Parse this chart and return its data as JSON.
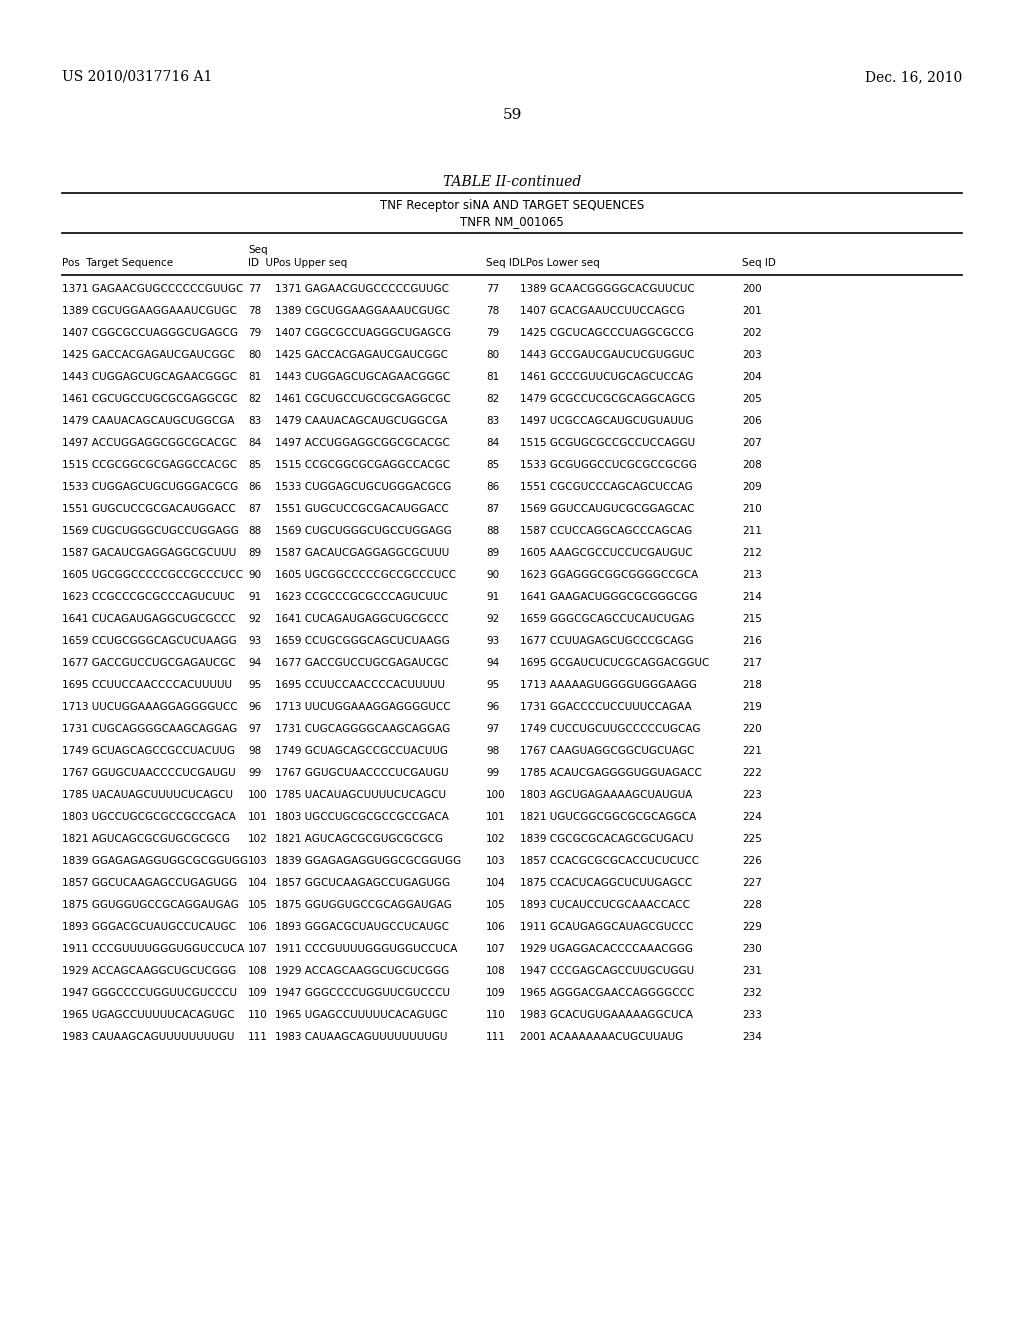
{
  "patent_left": "US 2010/0317716 A1",
  "patent_right": "Dec. 16, 2010",
  "page_number": "59",
  "table_title": "TABLE II-continued",
  "table_subtitle1": "TNF Receptor siNA AND TARGET SEQUENCES",
  "table_subtitle2": "TNFR NM_001065",
  "rows": [
    [
      "1371 GAGAACGUGCCCCCCGUUGC",
      "77",
      "1371 GAGAACGUGCCCCCGUUGC",
      "77",
      "1389 GCAACGGGGGCACGUUCUC",
      "200"
    ],
    [
      "1389 CGCUGGAAGGAAAUCGUGC",
      "78",
      "1389 CGCUGGAAGGAAAUCGUGC",
      "78",
      "1407 GCACGAAUCCUUCCAGCG",
      "201"
    ],
    [
      "1407 CGGCGCCUAGGGCUGAGCG",
      "79",
      "1407 CGGCGCCUAGGGCUGAGCG",
      "79",
      "1425 CGCUCAGCCCUAGGCGCCG",
      "202"
    ],
    [
      "1425 GACCACGAGAUCGAUCGGC",
      "80",
      "1425 GACCACGAGAUCGAUCGGC",
      "80",
      "1443 GCCGAUCGAUCUCGUGGUC",
      "203"
    ],
    [
      "1443 CUGGAGCUGCAGAACGGGC",
      "81",
      "1443 CUGGAGCUGCAGAACGGGC",
      "81",
      "1461 GCCCGUUCUGCAGCUCCAG",
      "204"
    ],
    [
      "1461 CGCUGCCUGCGCGAGGCGC",
      "82",
      "1461 CGCUGCCUGCGCGAGGCGC",
      "82",
      "1479 GCGCCUCGCGCAGGCAGCG",
      "205"
    ],
    [
      "1479 CAAUACAGCAUGCUGGCGA",
      "83",
      "1479 CAAUACAGCAUGCUGGCGA",
      "83",
      "1497 UCGCCAGCAUGCUGUAUUG",
      "206"
    ],
    [
      "1497 ACCUGGAGGCGGCGCACGC",
      "84",
      "1497 ACCUGGAGGCGGCGCACGC",
      "84",
      "1515 GCGUGCGCCGCCUCCAGGU",
      "207"
    ],
    [
      "1515 CCGCGGCGCGAGGCCACGC",
      "85",
      "1515 CCGCGGCGCGAGGCCACGC",
      "85",
      "1533 GCGUGGCCUCGCGCCGCGG",
      "208"
    ],
    [
      "1533 CUGGAGCUGCUGGGACGCG",
      "86",
      "1533 CUGGAGCUGCUGGGACGCG",
      "86",
      "1551 CGCGUCCCAGCAGCUCCAG",
      "209"
    ],
    [
      "1551 GUGCUCCGCGACAUGGACC",
      "87",
      "1551 GUGCUCCGCGACAUGGACC",
      "87",
      "1569 GGUCCAUGUCGCGGAGCAC",
      "210"
    ],
    [
      "1569 CUGCUGGGCUGCCUGGAGG",
      "88",
      "1569 CUGCUGGGCUGCCUGGAGG",
      "88",
      "1587 CCUCCAGGCAGCCCAGCAG",
      "211"
    ],
    [
      "1587 GACAUCGAGGAGGCGCUUU",
      "89",
      "1587 GACAUCGAGGAGGCGCUUU",
      "89",
      "1605 AAAGCGCCUCCUCGAUGUC",
      "212"
    ],
    [
      "1605 UGCGGCCCCCGCCGCCCUCC",
      "90",
      "1605 UGCGGCCCCCGCCGCCCUCC",
      "90",
      "1623 GGAGGGCGGCGGGGCCGCA",
      "213"
    ],
    [
      "1623 CCGCCCGCGCCCAGUCUUC",
      "91",
      "1623 CCGCCCGCGCCCAGUCUUC",
      "91",
      "1641 GAAGACUGGGCGCGGGCGG",
      "214"
    ],
    [
      "1641 CUCAGAUGAGGCUGCGCCC",
      "92",
      "1641 CUCAGAUGAGGCUGCGCCC",
      "92",
      "1659 GGGCGCAGCCUCAUCUGAG",
      "215"
    ],
    [
      "1659 CCUGCGGGCAGCUCUAAGG",
      "93",
      "1659 CCUGCGGGCAGCUCUAAGG",
      "93",
      "1677 CCUUAGAGCUGCCCGCAGG",
      "216"
    ],
    [
      "1677 GACCGUCCUGCGAGAUCGC",
      "94",
      "1677 GACCGUCCUGCGAGAUCGC",
      "94",
      "1695 GCGAUCUCUCGCAGGACGGUC",
      "217"
    ],
    [
      "1695 CCUUCCAACCCCACUUUUU",
      "95",
      "1695 CCUUCCAACCCCACUUUUU",
      "95",
      "1713 AAAAAGUGGGGUGGGAAGG",
      "218"
    ],
    [
      "1713 UUCUGGAAAGGAGGGGUCC",
      "96",
      "1713 UUCUGGAAAGGAGGGGUCC",
      "96",
      "1731 GGACCCCUCCUUUCCAGAA",
      "219"
    ],
    [
      "1731 CUGCAGGGGCAAGCAGGAG",
      "97",
      "1731 CUGCAGGGGCAAGCAGGAG",
      "97",
      "1749 CUCCUGCUUGCCCCCUGCAG",
      "220"
    ],
    [
      "1749 GCUAGCAGCCGCCUACUUG",
      "98",
      "1749 GCUAGCAGCCGCCUACUUG",
      "98",
      "1767 CAAGUAGGCGGCUGCUAGC",
      "221"
    ],
    [
      "1767 GGUGCUAACCCCUCGAUGU",
      "99",
      "1767 GGUGCUAACCCCUCGAUGU",
      "99",
      "1785 ACAUCGAGGGGUGGUAGACC",
      "222"
    ],
    [
      "1785 UACAUAGCUUUUCUCAGCU",
      "100",
      "1785 UACAUAGCUUUUCUCAGCU",
      "100",
      "1803 AGCUGAGAAAAGCUAUGUA",
      "223"
    ],
    [
      "1803 UGCCUGCGCGCCGCCGACA",
      "101",
      "1803 UGCCUGCGCGCCGCCGACA",
      "101",
      "1821 UGUCGGCGGCGCGCAGGCA",
      "224"
    ],
    [
      "1821 AGUCAGCGCGUGCGCGCG",
      "102",
      "1821 AGUCAGCGCGUGCGCGCG",
      "102",
      "1839 CGCGCGCACAGCGCUGACU",
      "225"
    ],
    [
      "1839 GGAGAGAGGUGGCGCGGUGG",
      "103",
      "1839 GGAGAGAGGUGGCGCGGUGG",
      "103",
      "1857 CCACGCGCGCACCUCUCUCC",
      "226"
    ],
    [
      "1857 GGCUCAAGAGCCUGAGUGG",
      "104",
      "1857 GGCUCAAGAGCCUGAGUGG",
      "104",
      "1875 CCACUCAGGCUCUUGAGCC",
      "227"
    ],
    [
      "1875 GGUGGUGCCGCAGGAUGAG",
      "105",
      "1875 GGUGGUGCCGCAGGAUGAG",
      "105",
      "1893 CUCAUCCUCGCAAACCACC",
      "228"
    ],
    [
      "1893 GGGACGCUAUGCCUCAUGC",
      "106",
      "1893 GGGACGCUAUGCCUCAUGC",
      "106",
      "1911 GCAUGAGGCAUAGCGUCCC",
      "229"
    ],
    [
      "1911 CCCGUUUUGGGUGGUCCUCA",
      "107",
      "1911 CCCGUUUUGGGUGGUCCUCA",
      "107",
      "1929 UGAGGACACCCCAAACGGG",
      "230"
    ],
    [
      "1929 ACCAGCAAGGCUGCUCGGG",
      "108",
      "1929 ACCAGCAAGGCUGCUCGGG",
      "108",
      "1947 CCCGAGCAGCCUUGCUGGU",
      "231"
    ],
    [
      "1947 GGGCCCCUGGUUCGUCCCU",
      "109",
      "1947 GGGCCCCUGGUUCGUCCCU",
      "109",
      "1965 AGGGACGAACCAGGGGCCC",
      "232"
    ],
    [
      "1965 UGAGCCUUUUUCACAGUGC",
      "110",
      "1965 UGAGCCUUUUUCACAGUGC",
      "110",
      "1983 GCACUGUGAAAAAGGCUCA",
      "233"
    ],
    [
      "1983 CAUAAGCAGUUUUUUUUGU",
      "111",
      "1983 CAUAAGCAGUUUUUUUUGU",
      "111",
      "2001 ACAAAAAAACUGCUUAUG",
      "234"
    ]
  ]
}
